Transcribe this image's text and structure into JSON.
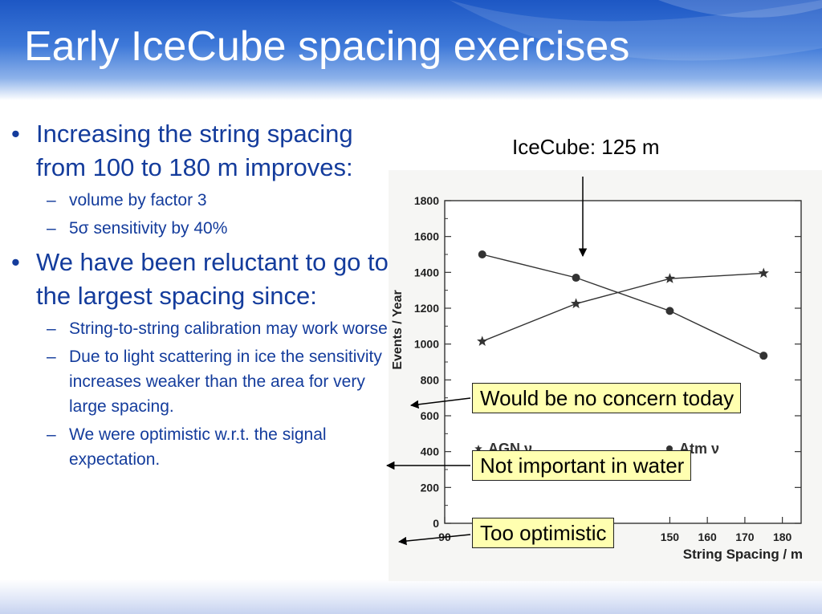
{
  "slide": {
    "title": "Early IceCube spacing exercises",
    "accent_color": "#143c9c",
    "header_color": "#2a63c9"
  },
  "bullets": [
    {
      "text": "Increasing the string spacing from 100 to 180 m improves:",
      "subs": [
        "volume by factor 3",
        "5σ sensitivity by 40%"
      ]
    },
    {
      "text": "We have been reluctant to go to the largest spacing since:",
      "subs": [
        "String-to-string calibration may work worse.",
        "Due to light scattering in ice the sensitivity increases weaker than the area for very large spacing.",
        "We were optimistic w.r.t. the signal expectation."
      ]
    }
  ],
  "markers": {
    "bullet": "•",
    "dash": "–"
  },
  "annotations": {
    "icecube_label": "IceCube: 125 m",
    "callout_1": "Would be no concern today",
    "callout_2": "Not important in water",
    "callout_3": "Too optimistic"
  },
  "chart_data": {
    "type": "line",
    "xlabel": "String Spacing / m",
    "ylabel": "Events / Year",
    "xlim": [
      90,
      185
    ],
    "ylim": [
      0,
      1800
    ],
    "x_ticks": [
      90,
      150,
      160,
      170,
      180
    ],
    "y_ticks": [
      0,
      200,
      400,
      600,
      800,
      1000,
      1200,
      1400,
      1600,
      1800
    ],
    "legend_partial": [
      "AGN ν",
      "Atm ν"
    ],
    "series": [
      {
        "name": "AGN ν",
        "marker": "star",
        "x": [
          100,
          125,
          150,
          175
        ],
        "values": [
          1015,
          1225,
          1365,
          1395
        ]
      },
      {
        "name": "Atm ν",
        "marker": "circle",
        "x": [
          100,
          125,
          150,
          175
        ],
        "values": [
          1500,
          1370,
          1185,
          935
        ]
      }
    ],
    "grid": false
  }
}
